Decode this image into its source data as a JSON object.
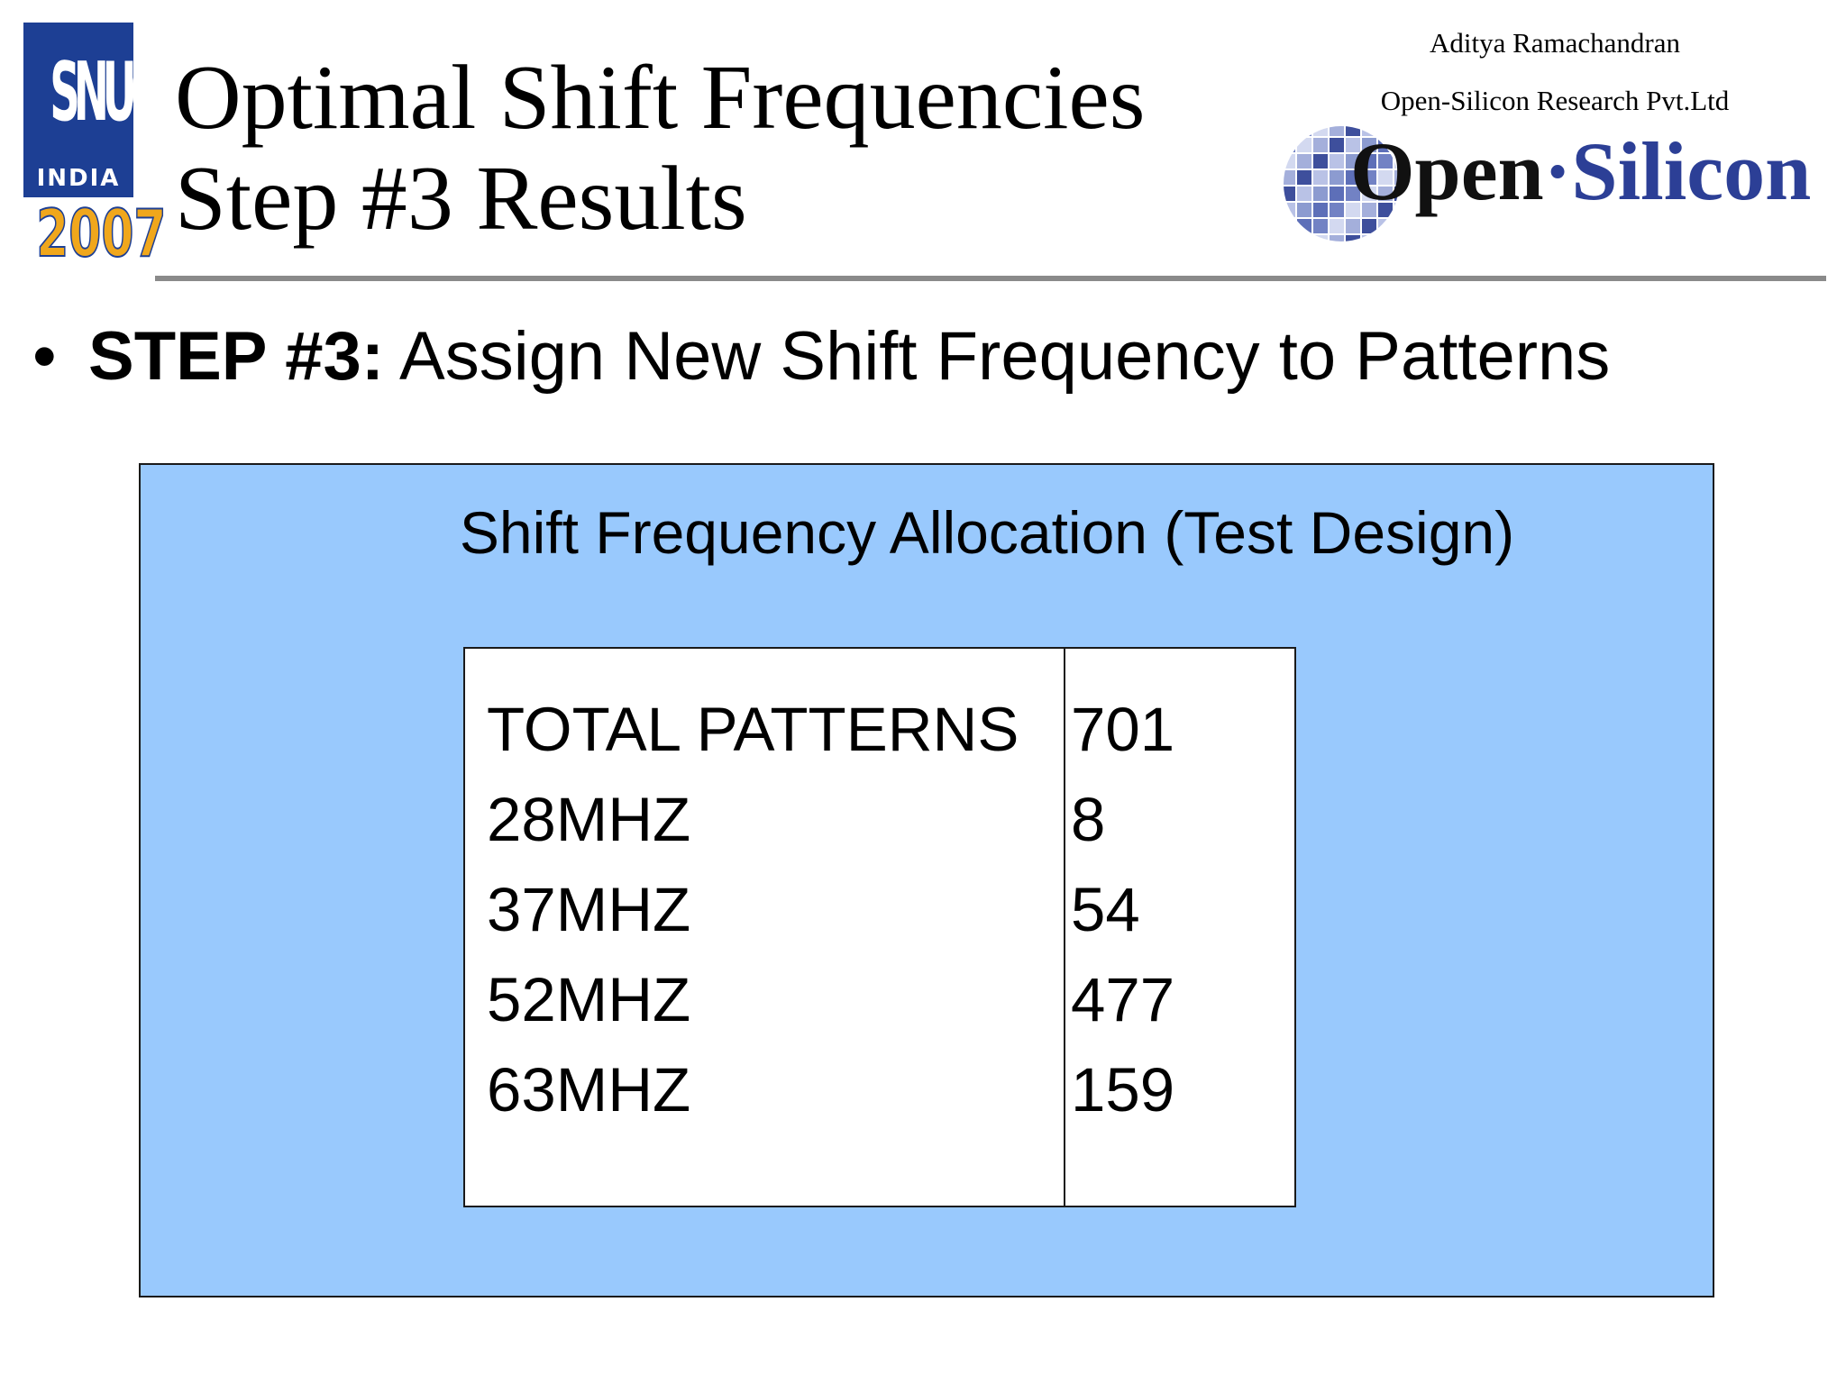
{
  "logo": {
    "letters": "SNUG",
    "region": "INDIA",
    "year": "2007"
  },
  "title": {
    "line1": "Optimal Shift Frequencies",
    "line2": "Step #3 Results"
  },
  "author": {
    "name": "Aditya Ramachandran",
    "organization": "Open-Silicon Research Pvt.Ltd"
  },
  "company_logo": {
    "open": "Open",
    "dot": "·",
    "silicon": "Silicon"
  },
  "bullet": {
    "label": "STEP #3:",
    "text": " Assign New Shift Frequency to Patterns"
  },
  "panel": {
    "title": "Shift Frequency Allocation (Test Design)",
    "rows": [
      {
        "label": "TOTAL PATTERNS",
        "value": "701"
      },
      {
        "label": "28MHZ",
        "value": "8"
      },
      {
        "label": "37MHZ",
        "value": "54"
      },
      {
        "label": "52MHZ",
        "value": "477"
      },
      {
        "label": "63MHZ",
        "value": "159"
      }
    ]
  },
  "colors": {
    "panel_background": "#99c9fd",
    "logo_blue": "#1d3f94",
    "logo_gold": "#f0a71c",
    "rule_gray": "#8a8a8a"
  }
}
